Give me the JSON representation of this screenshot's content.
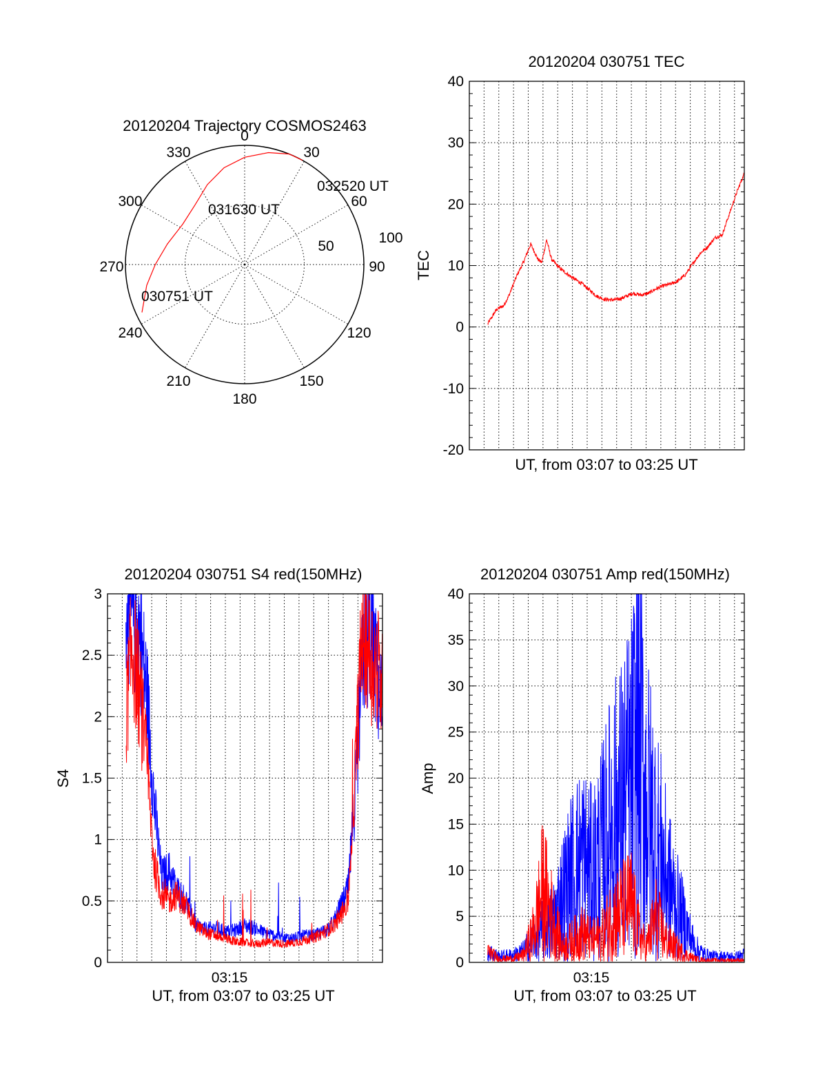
{
  "colors": {
    "red_series": "#ff0000",
    "blue_series": "#0000ff",
    "axes": "#000000",
    "background": "#ffffff"
  },
  "chart_data": [
    {
      "type": "polar",
      "title": "20120204 Trajectory COSMOS2463",
      "azimuth_labels": [
        "0",
        "30",
        "60",
        "90",
        "120",
        "150",
        "180",
        "210",
        "240",
        "270",
        "300",
        "330"
      ],
      "ring_labels": [
        "50",
        "100"
      ],
      "zenith_rings": [
        50,
        100
      ],
      "series": [
        {
          "color": "#ff0000",
          "points": [
            {
              "az": 245,
              "zen": 95
            },
            {
              "az": 258,
              "zen": 84
            },
            {
              "az": 270,
              "zen": 75
            },
            {
              "az": 285,
              "zen": 67
            },
            {
              "az": 303,
              "zen": 62
            },
            {
              "az": 320,
              "zen": 65
            },
            {
              "az": 335,
              "zen": 74
            },
            {
              "az": 348,
              "zen": 83
            },
            {
              "az": 0,
              "zen": 90
            },
            {
              "az": 12,
              "zen": 96
            },
            {
              "az": 22,
              "zen": 101
            },
            {
              "az": 29,
              "zen": 105
            }
          ]
        }
      ],
      "annotations": [
        {
          "text": "030751 UT",
          "az": 245,
          "zen": 95
        },
        {
          "text": "031630 UT",
          "az": 320,
          "zen": 65
        },
        {
          "text": "032520 UT",
          "az": 29,
          "zen": 105
        }
      ]
    },
    {
      "type": "line",
      "title": "20120204 030751 TEC",
      "xlabel": "UT, from 03:07 to 03:25 UT",
      "ylabel": "TEC",
      "xlim": [
        "03:07:00",
        "03:25:40"
      ],
      "ylim": [
        -20,
        40
      ],
      "yticks": [
        -20,
        -10,
        0,
        10,
        20,
        30,
        40
      ],
      "x_tick_labels": [],
      "grid": true,
      "series": [
        {
          "color": "#ff0000",
          "x": [
            "03:08:15",
            "03:08:50",
            "03:09:20",
            "03:09:40",
            "03:10:15",
            "03:10:40",
            "03:11:10",
            "03:11:40",
            "03:11:55",
            "03:12:15",
            "03:12:35",
            "03:13:10",
            "03:13:50",
            "03:14:40",
            "03:15:10",
            "03:15:40",
            "03:16:10",
            "03:16:45",
            "03:17:15",
            "03:17:40",
            "03:18:05",
            "03:18:40",
            "03:19:10",
            "03:19:40",
            "03:20:10",
            "03:20:40",
            "03:21:10",
            "03:21:40",
            "03:22:10",
            "03:22:40",
            "03:23:10",
            "03:23:40",
            "03:24:10",
            "03:24:40",
            "03:25:10",
            "03:25:40"
          ],
          "y": [
            0.5,
            2.8,
            3.5,
            5.0,
            8.5,
            10.5,
            13.5,
            11.0,
            10.5,
            14.2,
            11.0,
            9.5,
            8.3,
            7.0,
            6.0,
            5.0,
            4.5,
            4.4,
            4.6,
            5.0,
            5.5,
            5.2,
            5.5,
            6.2,
            6.7,
            7.0,
            7.5,
            8.5,
            10.3,
            12.0,
            13.0,
            14.5,
            15.0,
            18.5,
            22.0,
            25.0
          ]
        }
      ]
    },
    {
      "type": "line",
      "title": "20120204 030751 S4 red(150MHz)",
      "xlabel": "UT, from 03:07 to 03:25 UT",
      "ylabel": "S4",
      "xlim": [
        "03:07:00",
        "03:25:40"
      ],
      "ylim": [
        0,
        3
      ],
      "yticks": [
        0,
        0.5,
        1,
        1.5,
        2,
        2.5,
        3
      ],
      "ytick_labels": [
        "0",
        "0.5",
        "1",
        "1.5",
        "2",
        "2.5",
        "3"
      ],
      "x_tick_labels": [
        "03:15"
      ],
      "grid": true,
      "series": [
        {
          "color": "#0000ff",
          "x": [
            "03:08:15",
            "03:08:40",
            "03:09:10",
            "03:09:40",
            "03:10:10",
            "03:10:40",
            "03:11:10",
            "03:11:40",
            "03:12:20",
            "03:13:00",
            "03:13:40",
            "03:14:20",
            "03:15:00",
            "03:15:40",
            "03:16:20",
            "03:17:00",
            "03:17:40",
            "03:18:20",
            "03:19:00",
            "03:19:40",
            "03:20:20",
            "03:21:00",
            "03:21:40",
            "03:22:20",
            "03:22:50",
            "03:23:20",
            "03:23:50",
            "03:24:20",
            "03:24:50",
            "03:25:20",
            "03:25:40"
          ],
          "y": [
            2.9,
            2.8,
            2.7,
            2.2,
            1.3,
            0.7,
            0.75,
            0.6,
            0.5,
            0.3,
            0.27,
            0.28,
            0.25,
            0.26,
            0.3,
            0.28,
            0.24,
            0.22,
            0.2,
            0.2,
            0.22,
            0.22,
            0.25,
            0.32,
            0.45,
            0.6,
            1.4,
            2.5,
            2.7,
            2.3,
            2.0
          ]
        },
        {
          "color": "#ff0000",
          "x": [
            "03:08:15",
            "03:08:40",
            "03:09:10",
            "03:09:40",
            "03:10:10",
            "03:10:40",
            "03:11:10",
            "03:11:40",
            "03:12:20",
            "03:13:00",
            "03:13:40",
            "03:14:20",
            "03:15:00",
            "03:15:40",
            "03:16:20",
            "03:17:00",
            "03:17:40",
            "03:18:20",
            "03:19:00",
            "03:19:40",
            "03:20:20",
            "03:21:00",
            "03:21:40",
            "03:22:20",
            "03:22:50",
            "03:23:20",
            "03:23:50",
            "03:24:20",
            "03:24:50",
            "03:25:20",
            "03:25:40"
          ],
          "y": [
            2.0,
            2.6,
            2.2,
            1.6,
            0.8,
            0.55,
            0.5,
            0.55,
            0.45,
            0.3,
            0.24,
            0.22,
            0.2,
            0.17,
            0.16,
            0.15,
            0.16,
            0.16,
            0.15,
            0.16,
            0.18,
            0.2,
            0.24,
            0.3,
            0.38,
            0.5,
            1.6,
            2.8,
            2.5,
            2.4,
            2.2
          ]
        }
      ]
    },
    {
      "type": "line",
      "title": "20120204 030751 Amp red(150MHz)",
      "xlabel": "UT, from 03:07 to 03:25 UT",
      "ylabel": "Amp",
      "xlim": [
        "03:07:00",
        "03:25:40"
      ],
      "ylim": [
        0,
        40
      ],
      "yticks": [
        0,
        5,
        10,
        15,
        20,
        25,
        30,
        35,
        40
      ],
      "x_tick_labels": [
        "03:15"
      ],
      "grid": true,
      "series": [
        {
          "color": "#0000ff",
          "x": [
            "03:08:15",
            "03:09:00",
            "03:10:00",
            "03:10:40",
            "03:11:20",
            "03:12:00",
            "03:12:40",
            "03:13:20",
            "03:14:00",
            "03:14:40",
            "03:15:20",
            "03:16:00",
            "03:16:40",
            "03:17:20",
            "03:18:00",
            "03:18:30",
            "03:19:00",
            "03:19:40",
            "03:20:20",
            "03:21:00",
            "03:21:40",
            "03:22:20",
            "03:23:00",
            "03:23:40",
            "03:24:20",
            "03:25:00",
            "03:25:40"
          ],
          "y": [
            1.5,
            0.8,
            1.0,
            1.5,
            3.0,
            4.5,
            5.5,
            9.0,
            12.0,
            14.0,
            12.0,
            15.0,
            19.0,
            21.0,
            24.0,
            31.0,
            22.0,
            17.0,
            12.0,
            8.0,
            5.0,
            2.0,
            1.0,
            0.8,
            0.8,
            0.7,
            1.0
          ]
        },
        {
          "color": "#ff0000",
          "x": [
            "03:08:15",
            "03:09:00",
            "03:10:00",
            "03:10:40",
            "03:11:20",
            "03:12:00",
            "03:12:40",
            "03:13:20",
            "03:14:00",
            "03:14:40",
            "03:15:20",
            "03:16:00",
            "03:16:40",
            "03:17:20",
            "03:18:00",
            "03:18:30",
            "03:19:00",
            "03:19:40",
            "03:20:20",
            "03:21:00",
            "03:21:40",
            "03:22:20",
            "03:23:00",
            "03:23:40",
            "03:24:20",
            "03:25:00",
            "03:25:40"
          ],
          "y": [
            1.5,
            0.5,
            0.5,
            1.0,
            4.0,
            10.0,
            6.0,
            2.0,
            3.0,
            4.0,
            3.0,
            3.5,
            6.0,
            7.0,
            8.0,
            4.0,
            2.0,
            6.0,
            3.0,
            2.0,
            1.0,
            0.5,
            0.3,
            0.3,
            0.3,
            0.3,
            0.3
          ]
        }
      ]
    }
  ]
}
